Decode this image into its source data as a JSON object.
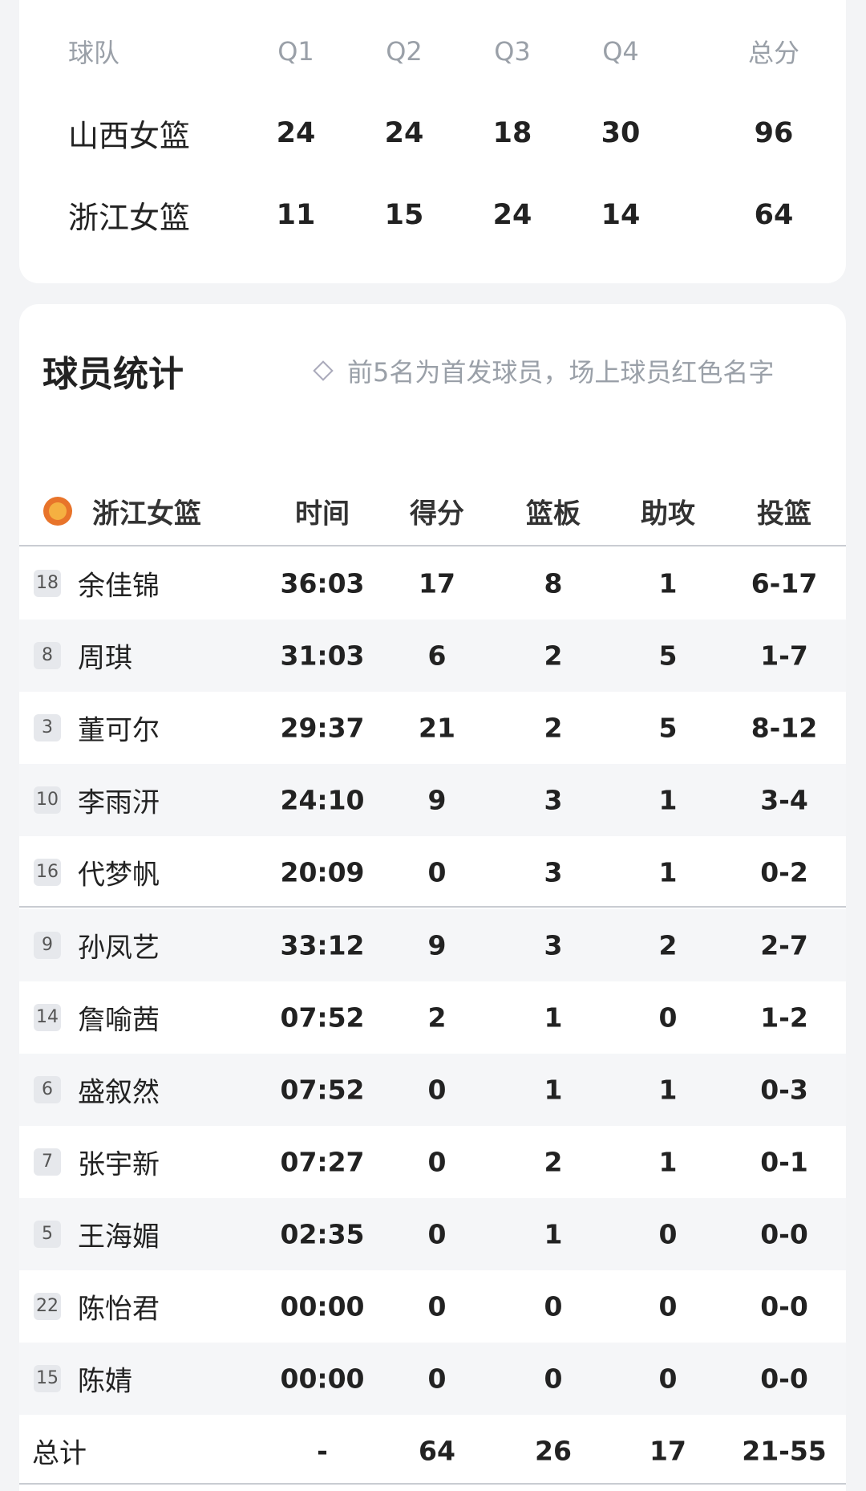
{
  "score_table": {
    "header": [
      "球队",
      "Q1",
      "Q2",
      "Q3",
      "Q4",
      "总分"
    ],
    "rows": [
      [
        "山西女篮",
        "24",
        "24",
        "18",
        "30",
        "96"
      ],
      [
        "浙江女篮",
        "11",
        "15",
        "24",
        "14",
        "64"
      ]
    ]
  },
  "player_stats": {
    "title": "球员统计",
    "note": "前5名为首发球员，场上球员红色名字",
    "team": "浙江女篮",
    "columns": [
      "时间",
      "得分",
      "篮板",
      "助攻",
      "投篮"
    ],
    "players": [
      {
        "number": "18",
        "name": "余佳锦",
        "stats": [
          "36:03",
          "17",
          "8",
          "1",
          "6-17"
        ]
      },
      {
        "number": "8",
        "name": "周琪",
        "stats": [
          "31:03",
          "6",
          "2",
          "5",
          "1-7"
        ]
      },
      {
        "number": "3",
        "name": "董可尔",
        "stats": [
          "29:37",
          "21",
          "2",
          "5",
          "8-12"
        ]
      },
      {
        "number": "10",
        "name": "李雨汧",
        "stats": [
          "24:10",
          "9",
          "3",
          "1",
          "3-4"
        ]
      },
      {
        "number": "16",
        "name": "代梦帆",
        "stats": [
          "20:09",
          "0",
          "3",
          "1",
          "0-2"
        ]
      },
      {
        "number": "9",
        "name": "孙凤艺",
        "stats": [
          "33:12",
          "9",
          "3",
          "2",
          "2-7"
        ]
      },
      {
        "number": "14",
        "name": "詹喻茜",
        "stats": [
          "07:52",
          "2",
          "1",
          "0",
          "1-2"
        ]
      },
      {
        "number": "6",
        "name": "盛叙然",
        "stats": [
          "07:52",
          "0",
          "1",
          "1",
          "0-3"
        ]
      },
      {
        "number": "7",
        "name": "张宇新",
        "stats": [
          "07:27",
          "0",
          "2",
          "1",
          "0-1"
        ]
      },
      {
        "number": "5",
        "name": "王海媚",
        "stats": [
          "02:35",
          "0",
          "1",
          "0",
          "0-0"
        ]
      },
      {
        "number": "22",
        "name": "陈怡君",
        "stats": [
          "00:00",
          "0",
          "0",
          "0",
          "0-0"
        ]
      },
      {
        "number": "15",
        "name": "陈婧",
        "stats": [
          "00:00",
          "0",
          "0",
          "0",
          "0-0"
        ]
      }
    ],
    "total": {
      "label": "总计",
      "stats": [
        "-",
        "64",
        "26",
        "17",
        "21-55"
      ]
    }
  }
}
